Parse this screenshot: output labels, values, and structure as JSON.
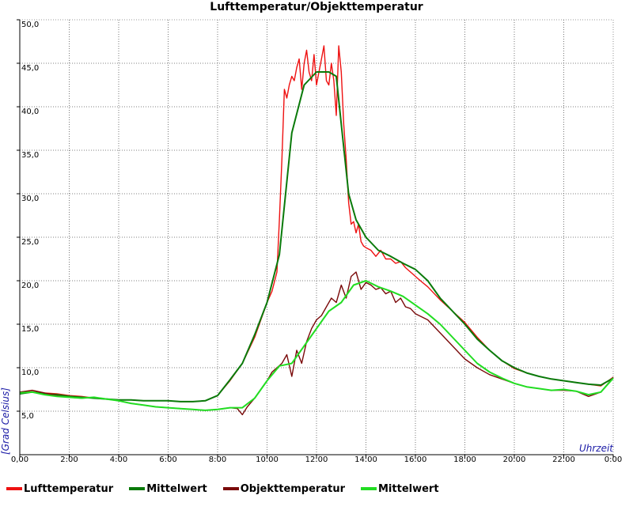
{
  "chart_data": {
    "type": "line",
    "title": "Lufttemperatur/Objekttemperatur",
    "xlabel": "Uhrzeit",
    "ylabel": "[Grad Celsius]",
    "x_tick_labels": [
      "0,00",
      "2:00",
      "4:00",
      "6:00",
      "8:00",
      "10:00",
      "12:00",
      "14:00",
      "16:00",
      "18:00",
      "20:00",
      "22:00",
      "0:00"
    ],
    "y_tick_labels": [
      "5,0",
      "10,0",
      "15,0",
      "20,0",
      "25,0",
      "30,0",
      "35,0",
      "40,0",
      "45,0",
      "50,0"
    ],
    "xlim": [
      0,
      24
    ],
    "ylim": [
      0,
      50
    ],
    "grid": true,
    "legend_position": "bottom",
    "series": [
      {
        "name": "Lufttemperatur",
        "color": "#ee1111",
        "width": 1.4,
        "x": [
          0,
          0.5,
          1,
          1.5,
          2,
          2.5,
          3,
          3.5,
          4,
          4.5,
          5,
          5.5,
          6,
          6.5,
          7,
          7.5,
          8,
          8.5,
          9,
          9.5,
          10,
          10.2,
          10.4,
          10.5,
          10.6,
          10.7,
          10.8,
          10.9,
          11,
          11.1,
          11.2,
          11.3,
          11.4,
          11.5,
          11.6,
          11.7,
          11.8,
          11.9,
          12,
          12.1,
          12.2,
          12.3,
          12.4,
          12.5,
          12.6,
          12.7,
          12.8,
          12.9,
          13,
          13.1,
          13.2,
          13.3,
          13.4,
          13.5,
          13.6,
          13.7,
          13.8,
          13.9,
          14,
          14.2,
          14.4,
          14.6,
          14.8,
          15,
          15.2,
          15.4,
          15.6,
          15.8,
          16,
          16.2,
          16.5,
          17,
          17.5,
          18,
          18.5,
          19,
          19.5,
          20,
          20.5,
          21,
          21.5,
          22,
          22.5,
          23,
          23.5,
          24
        ],
        "y": [
          7.1,
          7.4,
          7.1,
          7.0,
          6.8,
          6.7,
          6.5,
          6.4,
          6.3,
          6.3,
          6.2,
          6.2,
          6.2,
          6.1,
          6.1,
          6.2,
          6.8,
          8.5,
          10.5,
          13.5,
          17.5,
          18.8,
          21.0,
          27.0,
          34.0,
          42.0,
          41.0,
          42.5,
          43.5,
          43.0,
          44.5,
          45.5,
          42.0,
          45.0,
          46.5,
          44.0,
          43.0,
          46.0,
          42.5,
          44.0,
          45.5,
          47.0,
          43.0,
          42.5,
          45.0,
          43.0,
          39.0,
          47.0,
          44.0,
          38.0,
          34.0,
          29.0,
          26.5,
          26.8,
          25.5,
          26.5,
          24.5,
          24.0,
          23.8,
          23.5,
          22.8,
          23.5,
          22.5,
          22.5,
          22.0,
          22.2,
          21.5,
          21.0,
          20.5,
          20.0,
          19.3,
          17.8,
          16.5,
          15.2,
          13.5,
          12.0,
          10.8,
          9.9,
          9.4,
          9.0,
          8.7,
          8.5,
          8.3,
          8.1,
          7.9,
          8.9
        ]
      },
      {
        "name": "Mittelwert",
        "color": "#0a7a0a",
        "width": 2,
        "x": [
          0,
          0.5,
          1,
          1.5,
          2,
          2.5,
          3,
          3.5,
          4,
          4.5,
          5,
          5.5,
          6,
          6.5,
          7,
          7.5,
          8,
          8.5,
          9,
          9.5,
          10,
          10.5,
          11,
          11.5,
          12,
          12.5,
          12.8,
          13,
          13.3,
          13.6,
          14,
          14.5,
          15,
          15.5,
          16,
          16.5,
          17,
          17.5,
          18,
          18.5,
          19,
          19.5,
          20,
          20.5,
          21,
          21.5,
          22,
          22.5,
          23,
          23.5,
          24
        ],
        "y": [
          7.0,
          7.2,
          7.0,
          6.9,
          6.7,
          6.6,
          6.5,
          6.4,
          6.3,
          6.3,
          6.2,
          6.2,
          6.2,
          6.1,
          6.1,
          6.2,
          6.8,
          8.6,
          10.5,
          13.8,
          17.5,
          23.0,
          37.0,
          42.5,
          44.0,
          44.0,
          43.5,
          38.0,
          30.0,
          27.0,
          25.0,
          23.5,
          22.8,
          22.0,
          21.3,
          20.0,
          18.0,
          16.5,
          15.0,
          13.3,
          12.0,
          10.8,
          10.0,
          9.4,
          9.0,
          8.7,
          8.5,
          8.3,
          8.1,
          8.0,
          8.8
        ]
      },
      {
        "name": "Objekttemperatur",
        "color": "#7a0a0a",
        "width": 1.4,
        "x": [
          0,
          0.5,
          1,
          1.5,
          2,
          2.5,
          3,
          3.5,
          4,
          4.5,
          5,
          5.5,
          6,
          6.5,
          7,
          7.5,
          8,
          8.5,
          8.8,
          9,
          9.2,
          9.5,
          10,
          10.2,
          10.4,
          10.6,
          10.8,
          11,
          11.2,
          11.4,
          11.6,
          11.8,
          12,
          12.2,
          12.4,
          12.6,
          12.8,
          13,
          13.2,
          13.4,
          13.6,
          13.8,
          14,
          14.2,
          14.4,
          14.6,
          14.8,
          15,
          15.2,
          15.4,
          15.6,
          15.8,
          16,
          16.5,
          17,
          17.5,
          18,
          18.5,
          19,
          19.5,
          20,
          20.5,
          21,
          21.5,
          22,
          22.5,
          23,
          23.5,
          24
        ],
        "y": [
          7.2,
          7.4,
          7.1,
          6.8,
          6.6,
          6.5,
          6.6,
          6.4,
          6.2,
          5.9,
          5.7,
          5.5,
          5.4,
          5.3,
          5.2,
          5.1,
          5.2,
          5.4,
          5.3,
          4.6,
          5.5,
          6.5,
          8.5,
          9.5,
          10.0,
          10.5,
          11.5,
          9.0,
          12.0,
          10.5,
          13.0,
          14.5,
          15.5,
          16.0,
          17.0,
          18.0,
          17.5,
          19.5,
          18.0,
          20.5,
          21.0,
          19.0,
          19.8,
          19.5,
          19.0,
          19.2,
          18.5,
          18.8,
          17.5,
          18.0,
          17.0,
          16.8,
          16.2,
          15.5,
          14.0,
          12.5,
          11.0,
          10.0,
          9.2,
          8.7,
          8.2,
          7.8,
          7.6,
          7.4,
          7.4,
          7.3,
          6.7,
          7.2,
          8.9
        ]
      },
      {
        "name": "Mittelwert",
        "color": "#22dd22",
        "width": 2,
        "x": [
          0,
          0.5,
          1,
          1.5,
          2,
          2.5,
          3,
          3.5,
          4,
          4.5,
          5,
          5.5,
          6,
          6.5,
          7,
          7.5,
          8,
          8.5,
          9,
          9.5,
          10,
          10.5,
          11,
          11.5,
          12,
          12.5,
          13,
          13.5,
          14,
          14.5,
          15,
          15.5,
          16,
          16.5,
          17,
          17.5,
          18,
          18.5,
          19,
          19.5,
          20,
          20.5,
          21,
          21.5,
          22,
          22.5,
          23,
          23.5,
          24
        ],
        "y": [
          7.1,
          7.2,
          6.9,
          6.7,
          6.6,
          6.5,
          6.6,
          6.4,
          6.2,
          5.9,
          5.7,
          5.5,
          5.4,
          5.3,
          5.2,
          5.1,
          5.2,
          5.4,
          5.4,
          6.5,
          8.5,
          10.2,
          10.5,
          12.5,
          14.5,
          16.5,
          17.5,
          19.5,
          20.0,
          19.3,
          18.8,
          18.2,
          17.2,
          16.2,
          15.0,
          13.5,
          12.0,
          10.5,
          9.5,
          8.8,
          8.2,
          7.8,
          7.6,
          7.4,
          7.5,
          7.3,
          6.9,
          7.2,
          8.8
        ]
      }
    ]
  }
}
